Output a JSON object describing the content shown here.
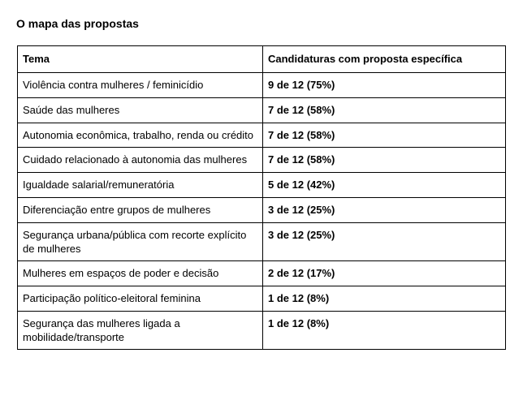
{
  "title": "O mapa das propostas",
  "table": {
    "headers": [
      "Tema",
      "Candidaturas com proposta específica"
    ],
    "rows": [
      {
        "tema": "Violência contra mulheres / feminicídio",
        "valor": "9 de 12 (75%)"
      },
      {
        "tema": "Saúde das mulheres",
        "valor": "7 de 12 (58%)"
      },
      {
        "tema": "Autonomia econômica, trabalho, renda ou crédito",
        "valor": "7 de 12 (58%)"
      },
      {
        "tema": "Cuidado relacionado à autonomia das mulheres",
        "valor": "7 de 12 (58%)"
      },
      {
        "tema": "Igualdade salarial/remuneratória",
        "valor": "5 de 12 (42%)"
      },
      {
        "tema": "Diferenciação entre grupos de mulheres",
        "valor": "3 de 12 (25%)"
      },
      {
        "tema": "Segurança urbana/pública com recorte explícito de mulheres",
        "valor": "3 de 12 (25%)"
      },
      {
        "tema": "Mulheres em espaços de poder e decisão",
        "valor": "2 de 12 (17%)"
      },
      {
        "tema": "Participação político-eleitoral feminina",
        "valor": "1 de 12 (8%)"
      },
      {
        "tema": "Segurança das mulheres ligada a mobilidade/transporte",
        "valor": "1 de 12 (8%)"
      }
    ]
  }
}
